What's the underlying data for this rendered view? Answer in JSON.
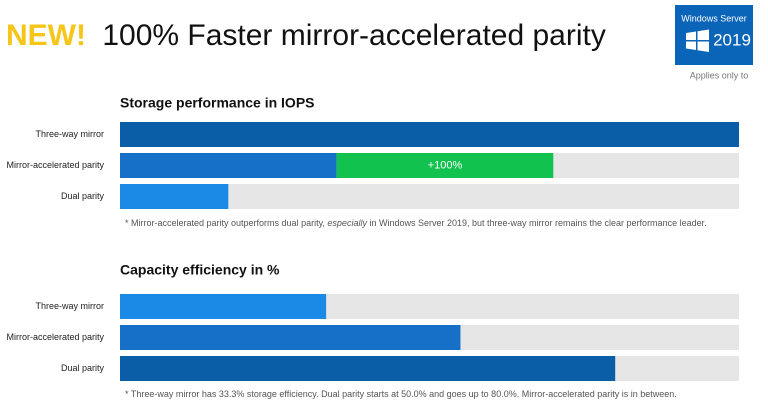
{
  "header": {
    "badge": "NEW!",
    "title": "100% Faster mirror-accelerated parity",
    "product": "Windows Server",
    "version": "2019",
    "applies": "Applies only to"
  },
  "chart_data": [
    {
      "type": "bar",
      "orientation": "horizontal",
      "title": "Storage performance in IOPS",
      "categories": [
        "Three-way mirror",
        "Mirror-accelerated parity",
        "Dual parity"
      ],
      "xlim": [
        0,
        100
      ],
      "track_color": "#e6e6e6",
      "series": [
        {
          "colors": [
            "#0a5ea8",
            "#1670c8",
            "#1a8ae6"
          ],
          "values": [
            100,
            35,
            17.5
          ]
        },
        {
          "name": "+100%",
          "color": "#12c24f",
          "values": [
            null,
            35,
            null
          ]
        }
      ],
      "note": [
        "* Mirror-accelerated parity outperforms dual parity, ",
        "especially",
        " in Windows Server 2019, but three-way mirror remains the clear performance leader."
      ]
    },
    {
      "type": "bar",
      "orientation": "horizontal",
      "title": "Capacity efficiency in %",
      "categories": [
        "Three-way mirror",
        "Mirror-accelerated parity",
        "Dual parity"
      ],
      "xlim": [
        0,
        100
      ],
      "track_color": "#e6e6e6",
      "series": [
        {
          "colors": [
            "#1a8ae6",
            "#1670c8",
            "#0a5ea8"
          ],
          "values": [
            33.3,
            55,
            80
          ]
        }
      ],
      "note": [
        "* Three-way mirror has 33.3% storage efficiency. Dual parity starts at 50.0% and goes up to 80.0%. Mirror-accelerated parity is in between."
      ]
    }
  ]
}
